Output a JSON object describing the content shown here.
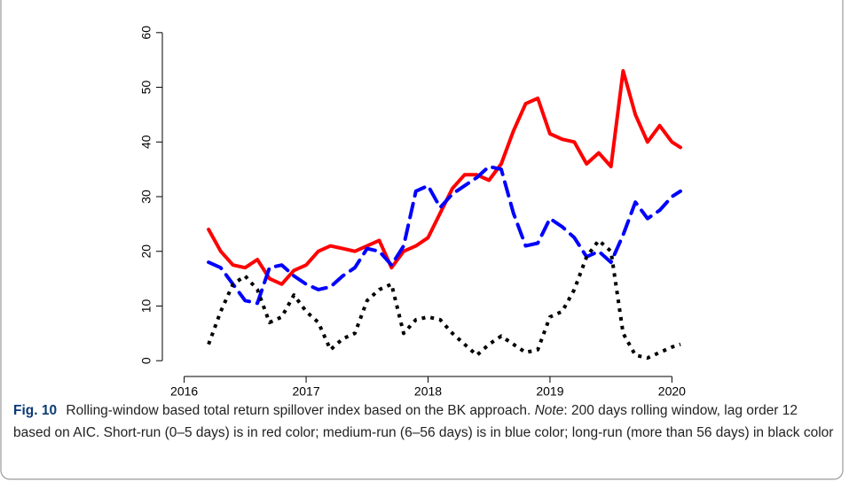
{
  "chart_data": {
    "type": "line",
    "x": [
      2016.2,
      2016.3,
      2016.4,
      2016.5,
      2016.6,
      2016.7,
      2016.8,
      2016.9,
      2017.0,
      2017.1,
      2017.2,
      2017.3,
      2017.4,
      2017.5,
      2017.6,
      2017.7,
      2017.8,
      2017.9,
      2018.0,
      2018.1,
      2018.2,
      2018.3,
      2018.4,
      2018.5,
      2018.6,
      2018.7,
      2018.8,
      2018.9,
      2019.0,
      2019.1,
      2019.2,
      2019.3,
      2019.4,
      2019.5,
      2019.6,
      2019.7,
      2019.8,
      2019.9,
      2020.0,
      2020.07
    ],
    "series": [
      {
        "color": "#ff0000",
        "line_style": "solid",
        "values": [
          24,
          20,
          17.5,
          17,
          18.5,
          15,
          14,
          16.5,
          17.5,
          20,
          21,
          20.5,
          20,
          21,
          22,
          17,
          20,
          21,
          22.5,
          27,
          31.5,
          34,
          34,
          33,
          36,
          42,
          47,
          48,
          41.5,
          40.5,
          40,
          36,
          38,
          35.5,
          53,
          45,
          40,
          43,
          40,
          39
        ]
      },
      {
        "color": "#0000ff",
        "line_style": "dashed",
        "values": [
          18,
          17,
          14,
          11,
          10.5,
          17,
          17.5,
          15.5,
          14,
          13,
          13.5,
          15.5,
          17,
          20.5,
          20,
          17.5,
          21,
          31,
          32,
          28,
          30.5,
          32,
          33.5,
          35.5,
          35,
          27,
          21,
          21.5,
          26,
          24.5,
          22.5,
          19,
          20,
          18,
          23,
          29,
          26,
          27.5,
          30,
          31
        ]
      },
      {
        "color": "#000000",
        "line_style": "dotted",
        "values": [
          3,
          9,
          14,
          15.5,
          13,
          7,
          8,
          12,
          9,
          7,
          2,
          4,
          5,
          11,
          13,
          14,
          5,
          7.5,
          8,
          7.5,
          5,
          3,
          1,
          3,
          4.5,
          3,
          1.5,
          2,
          8,
          9,
          13,
          19,
          22,
          20,
          5,
          1,
          0.5,
          1.5,
          2.5,
          3
        ]
      }
    ],
    "xlim": [
      2015.85,
      2020.15
    ],
    "xticks": [
      2016,
      2017,
      2018,
      2019,
      2020
    ],
    "ylim": [
      -2.4,
      62.4
    ],
    "yticks": [
      0,
      10,
      20,
      30,
      40,
      50,
      60
    ],
    "grid": false
  },
  "caption": {
    "label": "Fig. 10",
    "text": "Rolling-window based total return spillover index based on the BK approach.",
    "note_label": "Note",
    "note_text": ": 200 days rolling window, lag order 12 based on AIC. Short-run (0–5 days) is in red color; medium-run (6–56 days) is in blue color; long-run (more than 56 days) in black color"
  }
}
